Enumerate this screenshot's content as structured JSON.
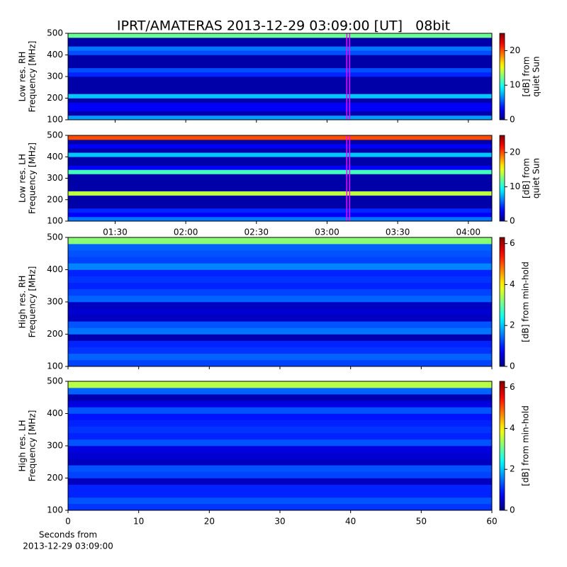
{
  "title": "IPRT/AMATERAS 2013-12-29 03:09:00 [UT]   08bit",
  "chart_data": [
    {
      "type": "heatmap",
      "ylabel": [
        "Low res. RH",
        "Frequency [MHz]"
      ],
      "xlim": [
        70,
        250
      ],
      "ylim": [
        100,
        500
      ],
      "yticks": [
        100,
        200,
        300,
        400,
        500
      ],
      "values": [
        7,
        1,
        3,
        3,
        1,
        8,
        1,
        1,
        1,
        1,
        4,
        5,
        1,
        1,
        1,
        5,
        6,
        1,
        1,
        12
      ],
      "colormap": "jet",
      "clim": [
        0,
        25
      ],
      "cticks": [
        0,
        10,
        20
      ],
      "clabel": [
        "[dB] from",
        "quiet Sun"
      ],
      "marker_x": 189,
      "marker_color": "#ff00ff"
    },
    {
      "type": "heatmap",
      "ylabel": [
        "Low res. LH",
        "Frequency [MHz]"
      ],
      "xlim": [
        70,
        250
      ],
      "ylim": [
        100,
        500
      ],
      "yticks": [
        100,
        200,
        300,
        400,
        500
      ],
      "xticks": [
        {
          "value": 90,
          "label": "01:30"
        },
        {
          "value": 120,
          "label": "02:00"
        },
        {
          "value": 150,
          "label": "02:30"
        },
        {
          "value": 180,
          "label": "03:00"
        },
        {
          "value": 210,
          "label": "03:30"
        },
        {
          "value": 240,
          "label": "04:00"
        }
      ],
      "values": [
        6,
        3,
        4,
        1,
        1,
        1,
        14,
        1,
        1,
        1,
        1,
        11,
        3,
        1,
        1,
        8,
        1,
        3,
        1,
        20
      ],
      "colormap": "jet",
      "clim": [
        0,
        25
      ],
      "cticks": [
        0,
        10,
        20
      ],
      "clabel": [
        "[dB] from",
        "quiet Sun"
      ],
      "marker_x": 189,
      "marker_color": "#ff00ff"
    },
    {
      "type": "heatmap",
      "ylabel": [
        "High res. RH",
        "Frequency [MHz]"
      ],
      "xlim": [
        0,
        60
      ],
      "ylim": [
        100,
        500
      ],
      "yticks": [
        100,
        200,
        300,
        400,
        500
      ],
      "values": [
        1.2,
        1.4,
        1.1,
        1.0,
        0.3,
        1.5,
        1.3,
        0.4,
        0.5,
        0.4,
        1.4,
        1.2,
        1.0,
        1.1,
        1.0,
        1.6,
        1.2,
        1.3,
        1.4,
        3.2
      ],
      "colormap": "jet",
      "clim": [
        0,
        6.3
      ],
      "cticks": [
        0,
        2,
        4,
        6
      ],
      "clabel": [
        "[dB] from min-hold"
      ]
    },
    {
      "type": "heatmap",
      "ylabel": [
        "High res. LH",
        "Frequency [MHz]"
      ],
      "xlim": [
        0,
        60
      ],
      "ylim": [
        100,
        500
      ],
      "yticks": [
        100,
        200,
        300,
        400,
        500
      ],
      "xticks": [
        0,
        10,
        20,
        30,
        40,
        50,
        60
      ],
      "xlabel": [
        "Seconds from",
        "2013-12-29 03:09:00"
      ],
      "values": [
        1.1,
        1.3,
        1.0,
        1.0,
        0.4,
        1.2,
        1.3,
        0.4,
        0.5,
        0.6,
        1.3,
        1.0,
        1.1,
        1.0,
        0.9,
        1.3,
        0.6,
        0.3,
        1.4,
        3.5
      ],
      "colormap": "jet",
      "clim": [
        0,
        6.3
      ],
      "cticks": [
        0,
        2,
        4,
        6
      ],
      "clabel": [
        "[dB] from min-hold"
      ]
    }
  ]
}
